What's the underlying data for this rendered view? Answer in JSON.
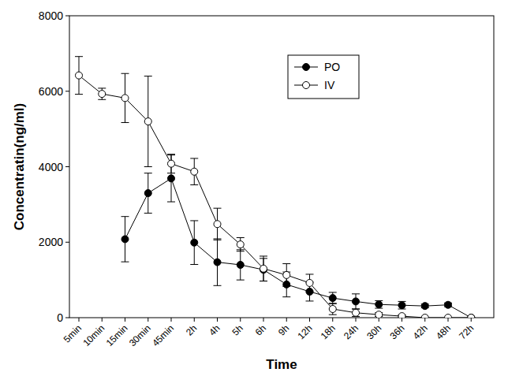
{
  "chart_data": {
    "type": "line",
    "x_label": "Time",
    "y_label": "Concentratin(ng/ml)",
    "categories": [
      "5min",
      "10min",
      "15min",
      "30min",
      "45min",
      "2h",
      "4h",
      "5h",
      "6h",
      "9h",
      "12h",
      "18h",
      "24h",
      "30h",
      "36h",
      "42h",
      "48h",
      "72h"
    ],
    "series": [
      {
        "name": "PO",
        "color": "#000000",
        "marker": "filled",
        "line_style": "solid",
        "values": [
          null,
          null,
          2080,
          3300,
          3690,
          1990,
          1470,
          1400,
          1270,
          880,
          690,
          520,
          430,
          350,
          330,
          310,
          340,
          0
        ],
        "errors": [
          null,
          null,
          600,
          530,
          620,
          580,
          620,
          400,
          300,
          330,
          250,
          150,
          200,
          100,
          100,
          50,
          50,
          0
        ]
      },
      {
        "name": "IV",
        "color": "#000000",
        "marker": "open",
        "line_style": "solid",
        "values": [
          6420,
          5930,
          5820,
          5200,
          4080,
          3870,
          2480,
          1940,
          1300,
          1130,
          920,
          230,
          130,
          80,
          40,
          0,
          0,
          0
        ],
        "errors": [
          500,
          150,
          650,
          1200,
          250,
          350,
          420,
          180,
          330,
          300,
          230,
          150,
          100,
          50,
          30,
          0,
          0,
          0
        ]
      }
    ],
    "ylim": [
      0,
      8000
    ],
    "yticks": [
      0,
      2000,
      4000,
      6000,
      8000
    ],
    "legend": "upper right",
    "grid": false
  }
}
